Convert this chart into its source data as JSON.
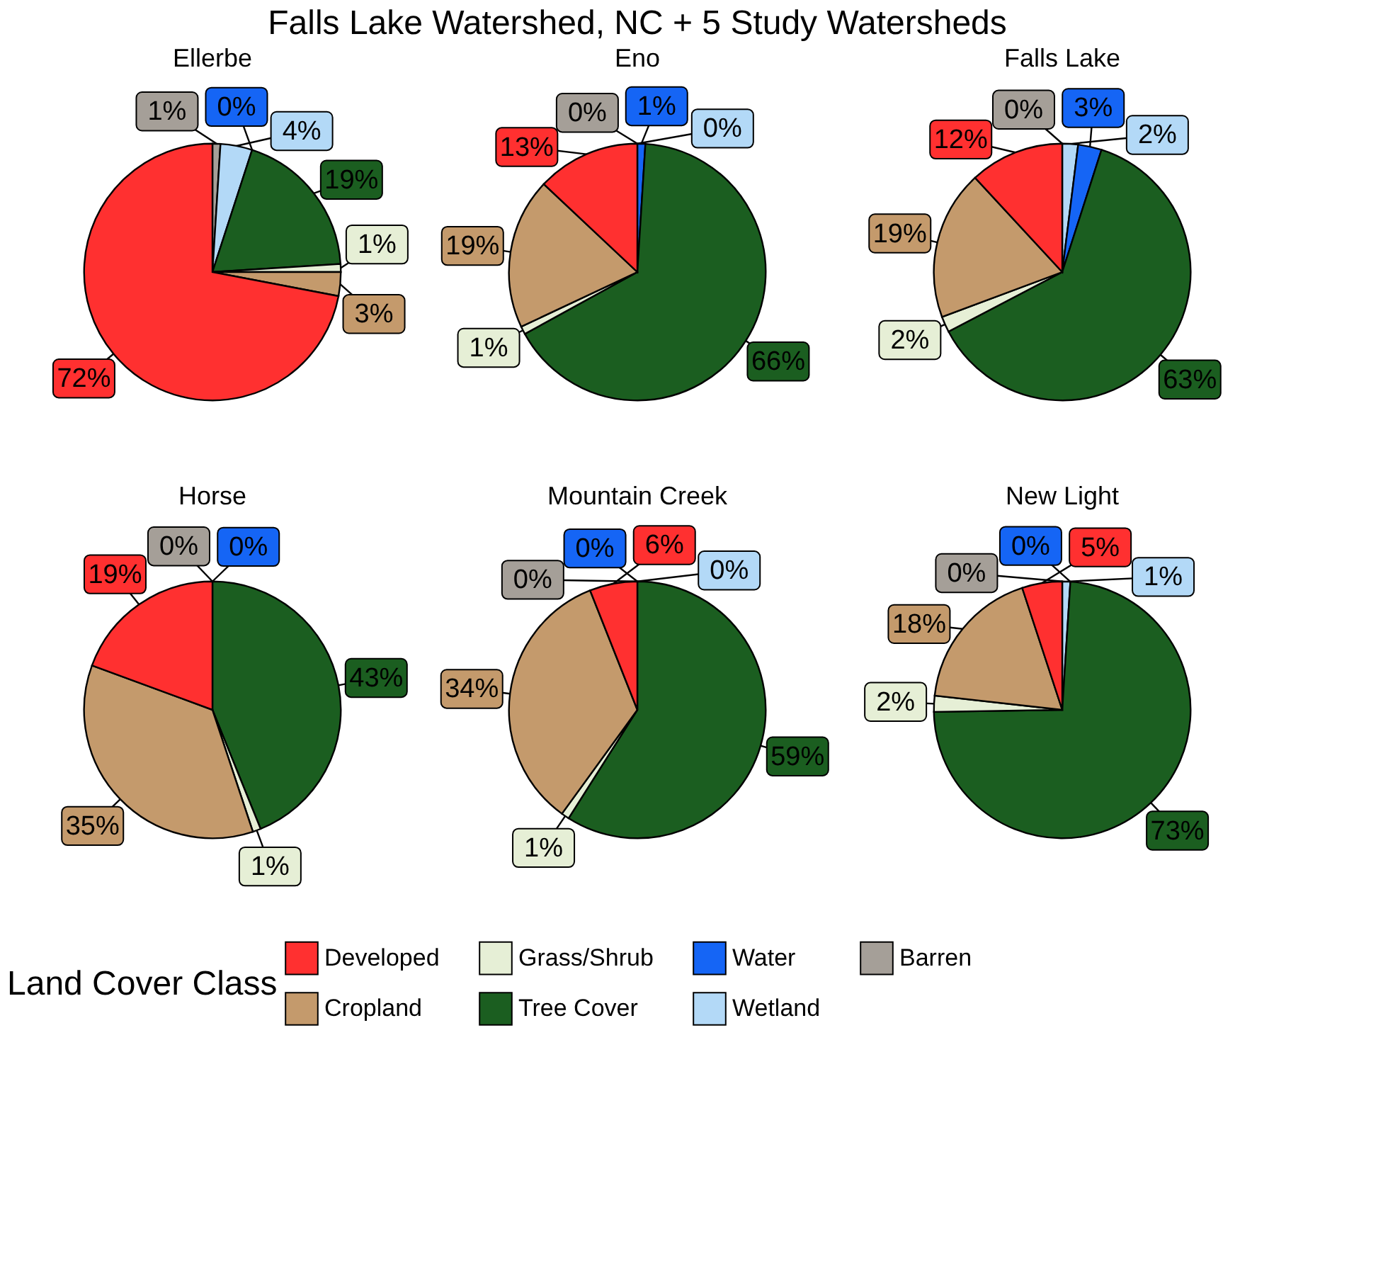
{
  "chart_data": [
    {
      "type": "pie",
      "title": "Ellerbe",
      "annotations": [
        "Falls Lake Watershed, NC + 5 Study Watersheds"
      ],
      "legend_title": "Land Cover Class",
      "legend": "bottom",
      "categories": [
        "Developed",
        "Cropland",
        "Grass/Shrub",
        "Tree Cover",
        "Water",
        "Wetland",
        "Barren"
      ],
      "values": [
        72,
        3,
        1,
        19,
        0,
        4,
        1
      ],
      "value_labels": [
        "72%",
        "3%",
        "1%",
        "19%",
        "0%",
        "4%",
        "1%"
      ],
      "colors": [
        "#ff3030",
        "#c49a6c",
        "#e6efd6",
        "#1b5e20",
        "#1565f5",
        "#b3d9f7",
        "#a59f98"
      ]
    },
    {
      "type": "pie",
      "title": "Eno",
      "categories": [
        null,
        null,
        null,
        null,
        null,
        null,
        null
      ],
      "values": [
        13,
        19,
        1,
        66,
        1,
        0,
        0
      ],
      "value_labels": [
        "13%",
        "19%",
        "1%",
        "66%",
        "1%",
        "0%",
        "0%"
      ],
      "colors": [
        "#ff3030",
        "#c49a6c",
        "#e6efd6",
        "#1b5e20",
        "#1565f5",
        "#b3d9f7",
        "#a59f98"
      ]
    },
    {
      "type": "pie",
      "title": "Falls Lake",
      "categories": [
        null,
        null,
        null,
        null,
        null,
        null,
        null
      ],
      "values": [
        12,
        19,
        2,
        63,
        3,
        2,
        0
      ],
      "value_labels": [
        "12%",
        "19%",
        "2%",
        "63%",
        "3%",
        "2%",
        "0%"
      ],
      "colors": [
        "#ff3030",
        "#c49a6c",
        "#e6efd6",
        "#1b5e20",
        "#1565f5",
        "#b3d9f7",
        "#a59f98"
      ]
    },
    {
      "type": "pie",
      "title": "Horse",
      "categories": [
        null,
        null,
        null,
        null,
        null,
        null
      ],
      "values": [
        19,
        35,
        1,
        43,
        0,
        0
      ],
      "value_labels": [
        "19%",
        "35%",
        "1%",
        "43%",
        "0%",
        "0%"
      ],
      "colors": [
        "#ff3030",
        "#c49a6c",
        "#e6efd6",
        "#1b5e20",
        "#1565f5",
        "#a59f98"
      ]
    },
    {
      "type": "pie",
      "title": "Mountain Creek",
      "categories": [
        null,
        null,
        null,
        null,
        null,
        null,
        null
      ],
      "values": [
        6,
        34,
        1,
        59,
        0,
        0,
        0
      ],
      "value_labels": [
        "6%",
        "34%",
        "1%",
        "59%",
        "0%",
        "0%",
        "0%"
      ],
      "colors": [
        "#ff3030",
        "#c49a6c",
        "#e6efd6",
        "#1b5e20",
        "#1565f5",
        "#b3d9f7",
        "#a59f98"
      ]
    },
    {
      "type": "pie",
      "title": "New Light",
      "categories": [
        null,
        null,
        null,
        null,
        null,
        null,
        null
      ],
      "values": [
        5,
        18,
        2,
        73,
        0,
        1,
        0
      ],
      "value_labels": [
        "5%",
        "18%",
        "2%",
        "73%",
        "0%",
        "1%",
        "0%"
      ],
      "colors": [
        "#ff3030",
        "#c49a6c",
        "#e6efd6",
        "#1b5e20",
        "#1565f5",
        "#b3d9f7",
        "#a59f98"
      ]
    }
  ]
}
